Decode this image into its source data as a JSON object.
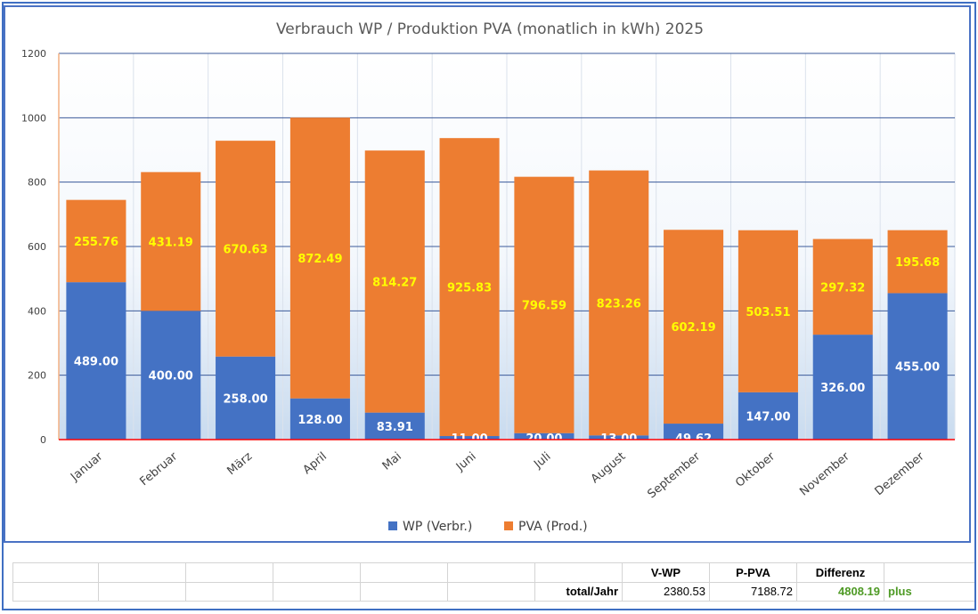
{
  "chart_data": {
    "type": "bar",
    "stacked": true,
    "title": "Verbrauch WP / Produktion PVA (monatlich in kWh) 2025",
    "categories": [
      "Januar",
      "Februar",
      "März",
      "April",
      "Mai",
      "Juni",
      "Juli",
      "August",
      "September",
      "Oktober",
      "November",
      "Dezember"
    ],
    "series": [
      {
        "name": "WP (Verbr.)",
        "color": "#4472c4",
        "values": [
          489.0,
          400.0,
          258.0,
          128.0,
          83.91,
          11.0,
          20.0,
          13.0,
          49.62,
          147.0,
          326.0,
          455.0
        ],
        "labels": [
          "489.00",
          "400.00",
          "258.00",
          "128.00",
          "83.91",
          "11.00",
          "20.00",
          "13.00",
          "49.62",
          "147.00",
          "326.00",
          "455.00"
        ]
      },
      {
        "name": "PVA (Prod.)",
        "color": "#ed7d31",
        "values": [
          255.76,
          431.19,
          670.63,
          872.49,
          814.27,
          925.83,
          796.59,
          823.26,
          602.19,
          503.51,
          297.32,
          195.68
        ],
        "labels": [
          "255.76",
          "431.19",
          "670.63",
          "872.49",
          "814.27",
          "925.83",
          "796.59",
          "823.26",
          "602.19",
          "503.51",
          "297.32",
          "195.68"
        ]
      }
    ],
    "ylim": [
      0,
      1200
    ],
    "yticks": [
      "0",
      "200",
      "400",
      "600",
      "800",
      "1000",
      "1200"
    ],
    "xlabel": "",
    "ylabel": "",
    "grid": true,
    "legend": "bottom",
    "label_color_wp": "#ffffff",
    "label_color_pva": "#ffff00"
  },
  "summary": {
    "headers": [
      "V-WP",
      "P-PVA",
      "Differenz"
    ],
    "row_label": "total/Jahr",
    "values": [
      "2380.53",
      "7188.72",
      "4808.19"
    ],
    "note": "plus",
    "positive_color": "#4e9a25"
  }
}
